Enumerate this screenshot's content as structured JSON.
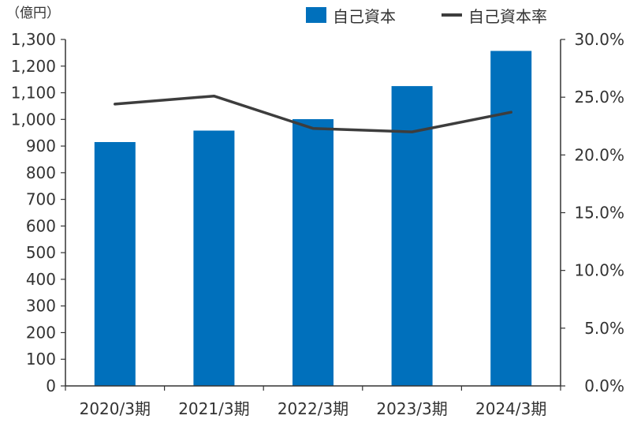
{
  "chart_data": {
    "type": "bar",
    "categories": [
      "2020/3期",
      "2021/3期",
      "2022/3期",
      "2023/3期",
      "2024/3期"
    ],
    "series": [
      {
        "name": "自己資本",
        "kind": "bar",
        "axis": "left",
        "color": "#0070bc",
        "values": [
          915,
          958,
          1001,
          1125,
          1257
        ]
      },
      {
        "name": "自己資本率",
        "kind": "line",
        "axis": "right",
        "color": "#3d3d3d",
        "values": [
          24.4,
          25.1,
          22.3,
          22.0,
          23.7
        ]
      }
    ],
    "y_left": {
      "unit_label": "（億円）",
      "ylim": [
        0,
        1300
      ],
      "ticks": [
        0,
        100,
        200,
        300,
        400,
        500,
        600,
        700,
        800,
        900,
        1000,
        1100,
        1200,
        1300
      ],
      "tick_labels": [
        "0",
        "100",
        "200",
        "300",
        "400",
        "500",
        "600",
        "700",
        "800",
        "900",
        "1,000",
        "1,100",
        "1,200",
        "1,300"
      ]
    },
    "y_right": {
      "ylim": [
        0,
        30
      ],
      "ticks": [
        0,
        5,
        10,
        15,
        20,
        25,
        30
      ],
      "tick_labels": [
        "0.0%",
        "5.0%",
        "10.0%",
        "15.0%",
        "20.0%",
        "25.0%",
        "30.0%"
      ]
    },
    "legend_position": "top-right",
    "grid": false
  }
}
